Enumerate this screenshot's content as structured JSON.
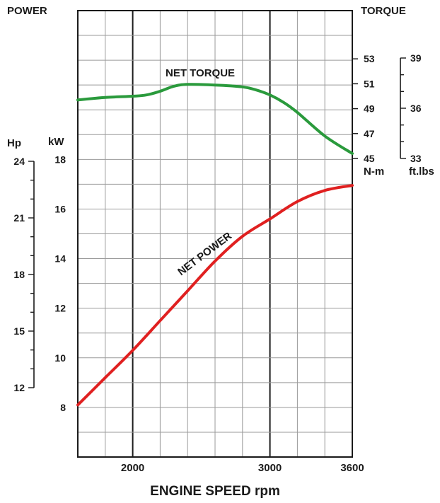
{
  "chart_data": {
    "type": "line",
    "xlabel": "ENGINE SPEED rpm",
    "x_range": [
      1600,
      3600
    ],
    "x_ticks": [
      2000,
      3000,
      3600
    ],
    "grid": true,
    "left_header": "POWER",
    "right_header": "TORQUE",
    "axes": {
      "kw": {
        "unit": "kW",
        "range": [
          6,
          24
        ],
        "ticks": [
          8,
          10,
          12,
          14,
          16,
          18
        ]
      },
      "hp": {
        "unit": "Hp",
        "ticks": [
          12,
          15,
          18,
          21,
          24
        ]
      },
      "nm": {
        "unit": "N-m",
        "range": [
          45,
          55
        ],
        "ticks": [
          45,
          47,
          49,
          51,
          53
        ]
      },
      "ftlbs": {
        "unit": "ft.lbs",
        "ticks": [
          33,
          36,
          39
        ]
      }
    },
    "series": [
      {
        "name": "NET TORQUE",
        "axis": "nm",
        "color": "#2a9a3c",
        "x": [
          1600,
          1800,
          2000,
          2100,
          2200,
          2300,
          2400,
          2600,
          2800,
          2900,
          3000,
          3100,
          3200,
          3400,
          3600
        ],
        "y": [
          49.7,
          49.9,
          50.0,
          50.1,
          50.4,
          50.8,
          50.95,
          50.9,
          50.75,
          50.5,
          50.1,
          49.5,
          48.7,
          46.8,
          45.4
        ]
      },
      {
        "name": "NET POWER",
        "axis": "kw",
        "color": "#e02020",
        "x": [
          1600,
          1800,
          2000,
          2200,
          2400,
          2600,
          2800,
          3000,
          3200,
          3400,
          3600
        ],
        "y": [
          8.1,
          9.2,
          10.3,
          11.5,
          12.7,
          13.9,
          14.9,
          15.6,
          16.3,
          16.75,
          16.95
        ]
      }
    ]
  }
}
